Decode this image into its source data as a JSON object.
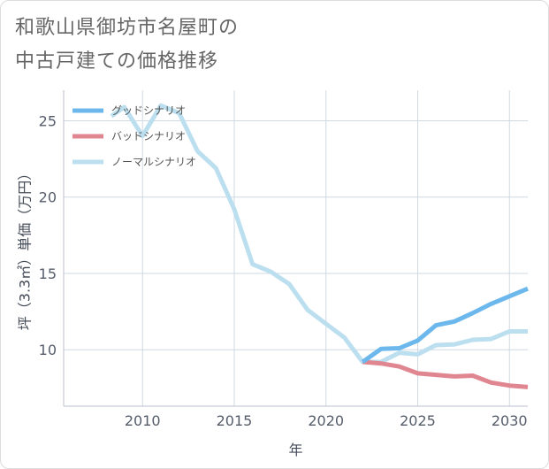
{
  "chart_data": {
    "type": "line",
    "title_lines": [
      "和歌山県御坊市名屋町の",
      "中古戸建ての価格推移"
    ],
    "xlabel": "年",
    "ylabel": "坪（3.3㎡）単価（万円）",
    "xlim": [
      2005.7,
      2031
    ],
    "ylim": [
      6.3,
      27
    ],
    "xticks": [
      2010,
      2015,
      2020,
      2025,
      2030
    ],
    "yticks": [
      10,
      15,
      20,
      25
    ],
    "grid": true,
    "legend_position": "top-left",
    "series": [
      {
        "name": "グッドシナリオ",
        "color": "#6cb8ec",
        "points": [
          [
            2022,
            9.2
          ],
          [
            2023,
            10.05
          ],
          [
            2024,
            10.1
          ],
          [
            2025,
            10.6
          ],
          [
            2026,
            11.6
          ],
          [
            2027,
            11.85
          ],
          [
            2028,
            12.4
          ],
          [
            2029,
            13.0
          ],
          [
            2030,
            13.5
          ],
          [
            2031,
            14.0
          ]
        ]
      },
      {
        "name": "バッドシナリオ",
        "color": "#e08690",
        "points": [
          [
            2022,
            9.2
          ],
          [
            2023,
            9.1
          ],
          [
            2024,
            8.9
          ],
          [
            2025,
            8.45
          ],
          [
            2026,
            8.35
          ],
          [
            2027,
            8.25
          ],
          [
            2028,
            8.3
          ],
          [
            2029,
            7.85
          ],
          [
            2030,
            7.65
          ],
          [
            2031,
            7.55
          ]
        ]
      },
      {
        "name": "ノーマルシナリオ",
        "color": "#bcdff0",
        "points": [
          [
            2008.3,
            25.3
          ],
          [
            2009,
            25.9
          ],
          [
            2010,
            24.0
          ],
          [
            2011,
            26.0
          ],
          [
            2012,
            25.5
          ],
          [
            2013,
            23.0
          ],
          [
            2014,
            21.9
          ],
          [
            2015,
            19.2
          ],
          [
            2016,
            15.6
          ],
          [
            2017,
            15.1
          ],
          [
            2018,
            14.3
          ],
          [
            2019,
            12.6
          ],
          [
            2020,
            11.7
          ],
          [
            2021,
            10.8
          ],
          [
            2022,
            9.2
          ],
          [
            2023,
            9.2
          ],
          [
            2024,
            9.8
          ],
          [
            2025,
            9.7
          ],
          [
            2026,
            10.3
          ],
          [
            2027,
            10.35
          ],
          [
            2028,
            10.65
          ],
          [
            2029,
            10.7
          ],
          [
            2030,
            11.2
          ],
          [
            2031,
            11.2
          ]
        ]
      }
    ]
  }
}
